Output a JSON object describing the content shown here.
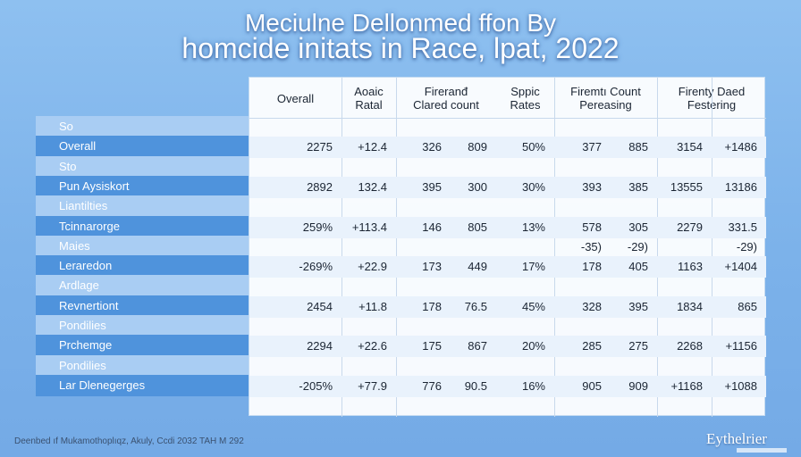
{
  "title": {
    "line1": "Meciulne Dellonmed ffon By",
    "line2": "homcide initats in Race, lpat, 2022"
  },
  "headers": [
    {
      "line1": "Overall",
      "line2": ""
    },
    {
      "line1": "Aoaic",
      "line2": "Ratal"
    },
    {
      "line1": "Fireranđ",
      "line2": "Clared count"
    },
    {
      "line1": "Sppic",
      "line2": "Rates"
    },
    {
      "line1": "Firemtı Count",
      "line2": "Pereasing"
    },
    {
      "line1": "Firenty Daed",
      "line2": "Festering"
    }
  ],
  "side_labels": [
    {
      "text": "So",
      "style": "light"
    },
    {
      "text": "Overall",
      "style": "strong"
    },
    {
      "text": "Sto",
      "style": "light"
    },
    {
      "text": "Pun Aysiskort",
      "style": "strong"
    },
    {
      "text": "Liantilties",
      "style": "light"
    },
    {
      "text": "Tcinnarorge",
      "style": "strong"
    },
    {
      "text": "Maies",
      "style": "light"
    },
    {
      "text": "Leraredon",
      "style": "strong"
    },
    {
      "text": "Ardlage",
      "style": "light"
    },
    {
      "text": "Revnertiont",
      "style": "strong"
    },
    {
      "text": "Pondilies",
      "style": "light"
    },
    {
      "text": "Prchemge",
      "style": "strong"
    },
    {
      "text": "Pondilies",
      "style": "light"
    },
    {
      "text": "Lar Dlenegerges",
      "style": "strong"
    }
  ],
  "rows": [
    [
      "",
      "",
      "",
      "",
      "",
      "",
      "",
      "",
      "",
      ""
    ],
    [
      "2275",
      "+12.4",
      "326",
      "809",
      "50%",
      "377",
      "885",
      "3154",
      "+1486"
    ],
    [
      "",
      "",
      "",
      "",
      "",
      "",
      "",
      "",
      ""
    ],
    [
      "2892",
      "132.4",
      "395",
      "300",
      "30%",
      "393",
      "385",
      "13555",
      "13186"
    ],
    [
      "",
      "",
      "",
      "",
      "",
      "",
      "",
      "",
      ""
    ],
    [
      "259%",
      "+113.4",
      "146",
      "805",
      "13%",
      "578",
      "305",
      "2279",
      "331.5"
    ],
    [
      "",
      "",
      "",
      "",
      "",
      "-35)",
      "-29)",
      "",
      "-29)"
    ],
    [
      "-269%",
      "+22.9",
      "173",
      "449",
      "17%",
      "178",
      "405",
      "1163",
      "+1404"
    ],
    [
      "",
      "",
      "",
      "",
      "",
      "",
      "",
      "",
      ""
    ],
    [
      "2454",
      "+11.8",
      "178",
      "76.5",
      "45%",
      "328",
      "395",
      "1834",
      "865"
    ],
    [
      "",
      "",
      "",
      "",
      "",
      "",
      "",
      "",
      ""
    ],
    [
      "2294",
      "+22.6",
      "175",
      "867",
      "20%",
      "285",
      "275",
      "2268",
      "+1156"
    ],
    [
      "",
      "",
      "",
      "",
      "",
      "",
      "",
      "",
      ""
    ],
    [
      "-205%",
      "+77.9",
      "776",
      "90.5",
      "16%",
      "905",
      "909",
      "+1168",
      "+1088"
    ]
  ],
  "footer": "Deenbed ıf Mukamothoplıqz, Akuly, Ccdi 2032 TAH M 292",
  "logo": "Eythelrier",
  "colors": {
    "background": "#7cb2ea",
    "label_strong": "#4f93dc",
    "label_light": "#a9cdf3",
    "row_shade": "#e9f2fc"
  }
}
